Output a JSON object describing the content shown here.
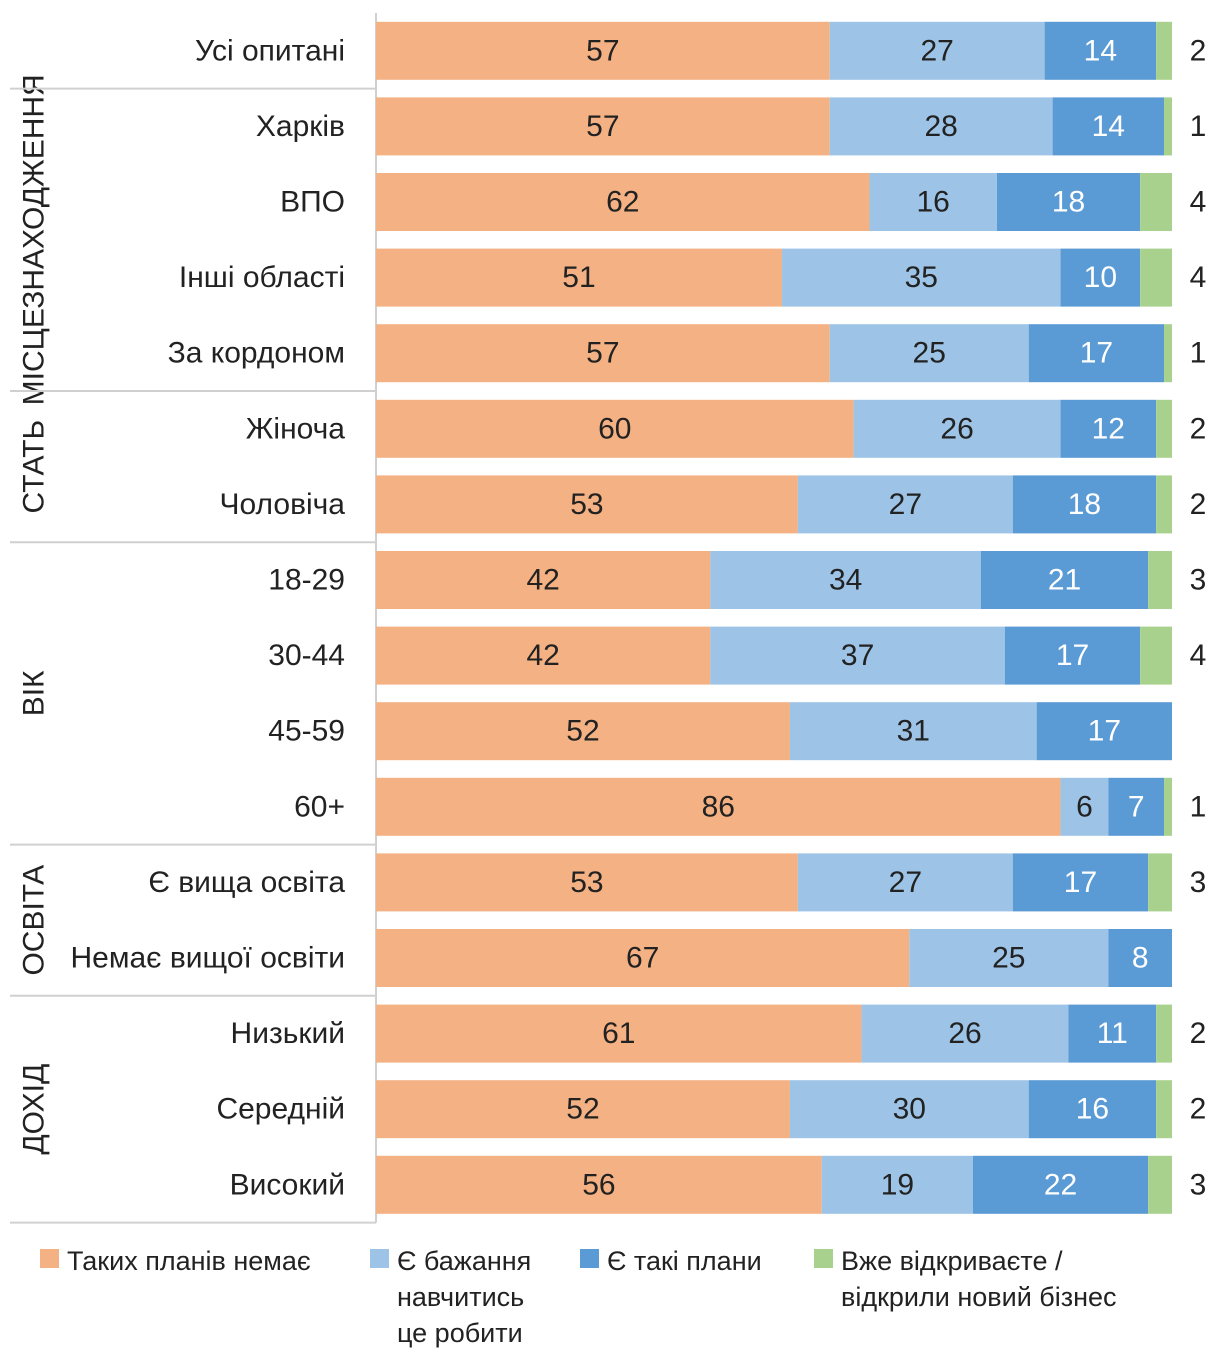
{
  "chart_data": {
    "type": "bar",
    "orientation": "horizontal",
    "stacked": true,
    "xlim": [
      0,
      100
    ],
    "grid": false,
    "legend_position": "bottom",
    "groups": [
      {
        "label": "",
        "rows": [
          0
        ]
      },
      {
        "label": "МІСЦЕЗНАХОДЖЕННЯ",
        "rows": [
          1,
          2,
          3,
          4
        ]
      },
      {
        "label": "СТАТЬ",
        "rows": [
          5,
          6
        ]
      },
      {
        "label": "ВІК",
        "rows": [
          7,
          8,
          9,
          10
        ]
      },
      {
        "label": "ОСВІТА",
        "rows": [
          11,
          12
        ]
      },
      {
        "label": "ДОХІД",
        "rows": [
          13,
          14,
          15
        ]
      }
    ],
    "categories": [
      "Усі опитані",
      "Харків",
      "ВПО",
      "Інші області",
      "За кордоном",
      "Жіноча",
      "Чоловіча",
      "18-29",
      "30-44",
      "45-59",
      "60+",
      "Є вища освіта",
      "Немає вищої освіти",
      "Низький",
      "Середній",
      "Високий"
    ],
    "series": [
      {
        "name": "Таких планів немає",
        "color": "#f4b183",
        "values": [
          57,
          57,
          62,
          51,
          57,
          60,
          53,
          42,
          42,
          52,
          86,
          53,
          67,
          61,
          52,
          56
        ]
      },
      {
        "name": "Є бажання навчитись це робити",
        "color": "#9dc3e6",
        "values": [
          27,
          28,
          16,
          35,
          25,
          26,
          27,
          34,
          37,
          31,
          6,
          27,
          25,
          26,
          30,
          19
        ]
      },
      {
        "name": "Є такі плани",
        "color": "#5b9bd5",
        "values": [
          14,
          14,
          18,
          10,
          17,
          12,
          18,
          21,
          17,
          17,
          7,
          17,
          8,
          11,
          16,
          22
        ]
      },
      {
        "name": "Вже відкриваєте / відкрили новий бізнес",
        "color": "#a9d18e",
        "values": [
          2,
          1,
          4,
          4,
          1,
          2,
          2,
          3,
          4,
          null,
          1,
          3,
          null,
          2,
          2,
          3
        ]
      }
    ]
  },
  "legend": [
    {
      "lines": [
        "Таких планів немає"
      ],
      "color": "#f4b183"
    },
    {
      "lines": [
        "Є бажання",
        "навчитись",
        "це робити"
      ],
      "color": "#9dc3e6"
    },
    {
      "lines": [
        "Є такі плани"
      ],
      "color": "#5b9bd5"
    },
    {
      "lines": [
        "Вже відкриваєте /",
        "відкрили новий бізнес"
      ],
      "color": "#a9d18e"
    }
  ]
}
